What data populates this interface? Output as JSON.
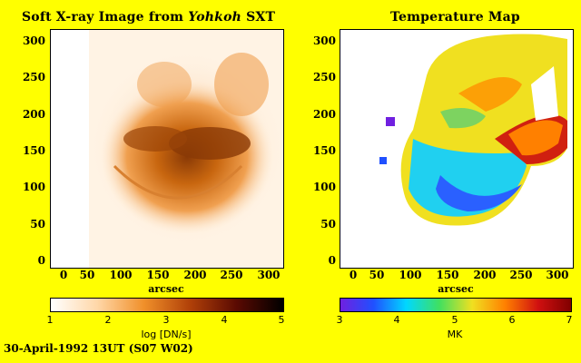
{
  "left_panel": {
    "title_main": "Soft X-ray Image from ",
    "title_italic": "Yohkoh",
    "title_tail": " SXT",
    "y_ticks": [
      "300",
      "250",
      "200",
      "150",
      "100",
      "50",
      "0"
    ],
    "x_ticks": [
      "0",
      "50",
      "100",
      "150",
      "200",
      "250",
      "300"
    ],
    "x_label": "arcsec",
    "colorbar": {
      "ticks": [
        "1",
        "2",
        "3",
        "4",
        "5"
      ],
      "label": "log [DN/s]",
      "colors": [
        "#ffffff",
        "#ffd7a8",
        "#f0902a",
        "#b04008",
        "#5a0a02",
        "#000000"
      ]
    }
  },
  "right_panel": {
    "title": "Temperature Map",
    "y_ticks": [
      "300",
      "250",
      "200",
      "150",
      "100",
      "50",
      "0"
    ],
    "x_ticks": [
      "0",
      "50",
      "100",
      "150",
      "200",
      "250",
      "300"
    ],
    "x_label": "arcsec",
    "colorbar": {
      "ticks": [
        "3",
        "4",
        "5",
        "6",
        "7"
      ],
      "label": "MK",
      "colors": [
        "#7020e0",
        "#2050ff",
        "#00d8ff",
        "#40e060",
        "#f0e020",
        "#ff8000",
        "#d01010",
        "#800000"
      ]
    }
  },
  "footer": "30-April-1992 13UT (S07 W02)"
}
